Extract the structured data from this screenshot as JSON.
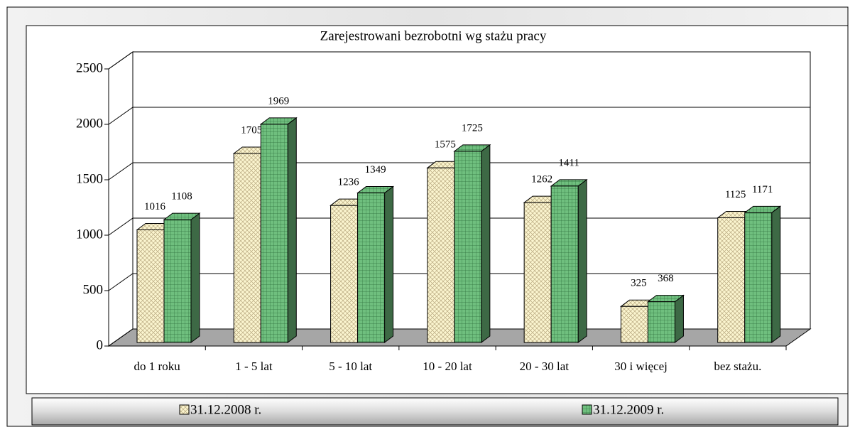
{
  "chart_data": {
    "type": "bar3d",
    "title": "Zarejestrowani bezrobotni wg stażu pracy",
    "categories": [
      "do 1 roku",
      "1 - 5 lat",
      "5 - 10 lat",
      "10 - 20 lat",
      "20 - 30 lat",
      "30 i więcej",
      "bez stażu."
    ],
    "series": [
      {
        "name": "31.12.2008 r.",
        "color": "#fbf5cf",
        "values": [
          1016,
          1705,
          1236,
          1575,
          1262,
          325,
          1125
        ]
      },
      {
        "name": "31.12.2009 r.",
        "color": "#6fbf7e",
        "values": [
          1108,
          1969,
          1349,
          1725,
          1411,
          368,
          1171
        ]
      }
    ],
    "ylim": [
      0,
      2500
    ],
    "yticks": [
      0,
      500,
      1000,
      1500,
      2000,
      2500
    ],
    "grid": true,
    "legend": "bottom"
  }
}
